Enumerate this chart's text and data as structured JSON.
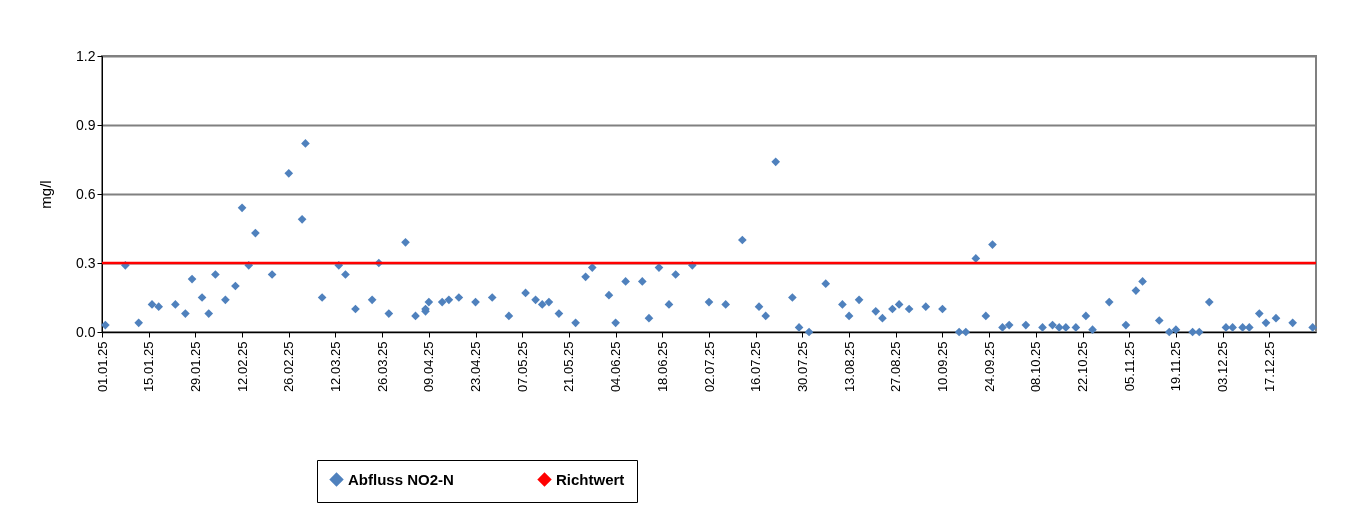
{
  "chart_data": {
    "type": "scatter",
    "ylabel": "mg/l",
    "xlim": [
      "--01-01",
      "--12-31"
    ],
    "xticks": [
      {
        "value": "--01-01",
        "label": "01.01.25"
      },
      {
        "value": "--01-15",
        "label": "15.01.25"
      },
      {
        "value": "--01-29",
        "label": "29.01.25"
      },
      {
        "value": "--02-12",
        "label": "12.02.25"
      },
      {
        "value": "--02-26",
        "label": "26.02.25"
      },
      {
        "value": "--03-12",
        "label": "12.03.25"
      },
      {
        "value": "--03-26",
        "label": "26.03.25"
      },
      {
        "value": "--04-09",
        "label": "09.04.25"
      },
      {
        "value": "--04-23",
        "label": "23.04.25"
      },
      {
        "value": "--05-07",
        "label": "07.05.25"
      },
      {
        "value": "--05-21",
        "label": "21.05.25"
      },
      {
        "value": "--06-04",
        "label": "04.06.25"
      },
      {
        "value": "--06-18",
        "label": "18.06.25"
      },
      {
        "value": "--07-02",
        "label": "02.07.25"
      },
      {
        "value": "--07-16",
        "label": "16.07.25"
      },
      {
        "value": "--07-30",
        "label": "30.07.25"
      },
      {
        "value": "--08-13",
        "label": "13.08.25"
      },
      {
        "value": "--08-27",
        "label": "27.08.25"
      },
      {
        "value": "--09-10",
        "label": "10.09.25"
      },
      {
        "value": "--09-24",
        "label": "24.09.25"
      },
      {
        "value": "--10-08",
        "label": "08.10.25"
      },
      {
        "value": "--10-22",
        "label": "22.10.25"
      },
      {
        "value": "--11-05",
        "label": "05.11.25"
      },
      {
        "value": "--11-19",
        "label": "19.11.25"
      },
      {
        "value": "--12-03",
        "label": "03.12.25"
      },
      {
        "value": "--12-17",
        "label": "17.12.25"
      }
    ],
    "ylim": [
      0,
      1.2
    ],
    "yticks": [
      {
        "value": 0,
        "label": "0.0"
      },
      0.3,
      0.6,
      0.9,
      1.2
    ],
    "grid": "y",
    "legend": "bottom",
    "marker": "diamond",
    "series": [
      {
        "name": "Abfluss NO2-N",
        "color": "#4f81bd",
        "x": [
          "--01-02",
          "--01-08",
          "--01-12",
          "--01-16",
          "--01-18",
          "--01-23",
          "--01-26",
          "--01-28",
          "--01-31",
          "--02-02",
          "--02-04",
          "--02-07",
          "--02-10",
          "--02-12",
          "--02-14",
          "--02-16",
          "--02-21",
          "--02-26",
          "--03-02",
          "--03-03",
          "--03-08",
          "--03-13",
          "--03-15",
          "--03-18",
          "--03-23",
          "--03-25",
          "--03-28",
          "--04-02",
          "--04-05",
          "--04-08",
          "--04-08",
          "--04-09",
          "--04-13",
          "--04-15",
          "--04-18",
          "--04-23",
          "--04-28",
          "--05-03",
          "--05-08",
          "--05-11",
          "--05-13",
          "--05-15",
          "--05-18",
          "--05-23",
          "--05-26",
          "--05-28",
          "--06-02",
          "--06-04",
          "--06-07",
          "--06-12",
          "--06-14",
          "--06-17",
          "--06-20",
          "--06-22",
          "--06-27",
          "--07-02",
          "--07-07",
          "--07-12",
          "--07-17",
          "--07-19",
          "--07-22",
          "--07-27",
          "--07-29",
          "--08-01",
          "--08-06",
          "--08-11",
          "--08-13",
          "--08-16",
          "--08-21",
          "--08-23",
          "--08-26",
          "--08-28",
          "--08-31",
          "--09-05",
          "--09-10",
          "--09-15",
          "--09-17",
          "--09-20",
          "--09-23",
          "--09-25",
          "--09-28",
          "--09-30",
          "--10-05",
          "--10-10",
          "--10-13",
          "--10-15",
          "--10-17",
          "--10-20",
          "--10-23",
          "--10-25",
          "--10-30",
          "--11-04",
          "--11-07",
          "--11-09",
          "--11-14",
          "--11-17",
          "--11-19",
          "--11-24",
          "--11-26",
          "--11-29",
          "--12-04",
          "--12-06",
          "--12-09",
          "--12-11",
          "--12-14",
          "--12-16",
          "--12-19",
          "--12-24",
          "--12-30"
        ],
        "values": [
          0.03,
          0.29,
          0.04,
          0.12,
          0.11,
          0.12,
          0.08,
          0.23,
          0.15,
          0.08,
          0.25,
          0.14,
          0.2,
          0.54,
          0.29,
          0.43,
          0.25,
          0.69,
          0.49,
          0.82,
          0.15,
          0.29,
          0.25,
          0.1,
          0.14,
          0.3,
          0.08,
          0.39,
          0.07,
          0.09,
          0.1,
          0.13,
          0.13,
          0.14,
          0.15,
          0.13,
          0.15,
          0.07,
          0.17,
          0.14,
          0.12,
          0.13,
          0.08,
          0.04,
          0.24,
          0.28,
          0.16,
          0.04,
          0.22,
          0.22,
          0.06,
          0.28,
          0.12,
          0.25,
          0.29,
          0.13,
          0.12,
          0.4,
          0.11,
          0.07,
          0.74,
          0.15,
          0.02,
          0.0,
          0.21,
          0.12,
          0.07,
          0.14,
          0.09,
          0.06,
          0.1,
          0.12,
          0.1,
          0.11,
          0.1,
          0.0,
          0.0,
          0.32,
          0.07,
          0.38,
          0.02,
          0.03,
          0.03,
          0.02,
          0.03,
          0.02,
          0.02,
          0.02,
          0.07,
          0.01,
          0.13,
          0.03,
          0.18,
          0.22,
          0.05,
          0.0,
          0.01,
          0.0,
          0.0,
          0.13,
          0.02,
          0.02,
          0.02,
          0.02,
          0.08,
          0.04,
          0.06,
          0.04,
          0.02
        ]
      }
    ],
    "ref_lines": [
      {
        "axis": "y",
        "value": 0.3,
        "label": "Richtwert",
        "color": "#ff0000"
      }
    ]
  }
}
